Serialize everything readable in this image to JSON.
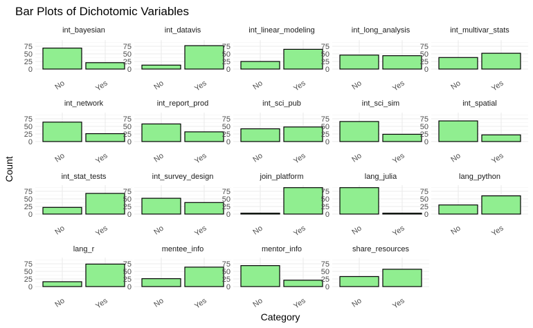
{
  "chart_data": {
    "type": "bar",
    "title": "Bar Plots of Dichotomic Variables",
    "xlabel": "Category",
    "ylabel": "Count",
    "categories": [
      "No",
      "Yes"
    ],
    "yticks": [
      0,
      25,
      50,
      75
    ],
    "ylim": [
      0,
      95
    ],
    "grid": true,
    "bar_color": "#90ee90",
    "bar_outline": "#000000",
    "panels": [
      {
        "name": "int_bayesian",
        "values": [
          69,
          21
        ]
      },
      {
        "name": "int_datavis",
        "values": [
          13,
          77
        ]
      },
      {
        "name": "int_linear_modeling",
        "values": [
          25,
          65
        ]
      },
      {
        "name": "int_long_analysis",
        "values": [
          46,
          44
        ]
      },
      {
        "name": "int_multivar_stats",
        "values": [
          38,
          52
        ]
      },
      {
        "name": "int_network",
        "values": [
          64,
          26
        ]
      },
      {
        "name": "int_report_prod",
        "values": [
          58,
          32
        ]
      },
      {
        "name": "int_sci_pub",
        "values": [
          42,
          48
        ]
      },
      {
        "name": "int_sci_sim",
        "values": [
          66,
          24
        ]
      },
      {
        "name": "int_spatial",
        "values": [
          68,
          22
        ]
      },
      {
        "name": "int_stat_tests",
        "values": [
          22,
          68
        ]
      },
      {
        "name": "int_survey_design",
        "values": [
          52,
          38
        ]
      },
      {
        "name": "join_platform",
        "values": [
          3,
          87
        ]
      },
      {
        "name": "lang_julia",
        "values": [
          87,
          3
        ]
      },
      {
        "name": "lang_python",
        "values": [
          30,
          60
        ]
      },
      {
        "name": "lang_r",
        "values": [
          16,
          74
        ]
      },
      {
        "name": "mentee_info",
        "values": [
          26,
          64
        ]
      },
      {
        "name": "mentor_info",
        "values": [
          69,
          21
        ]
      },
      {
        "name": "share_resources",
        "values": [
          33,
          57
        ]
      }
    ]
  }
}
